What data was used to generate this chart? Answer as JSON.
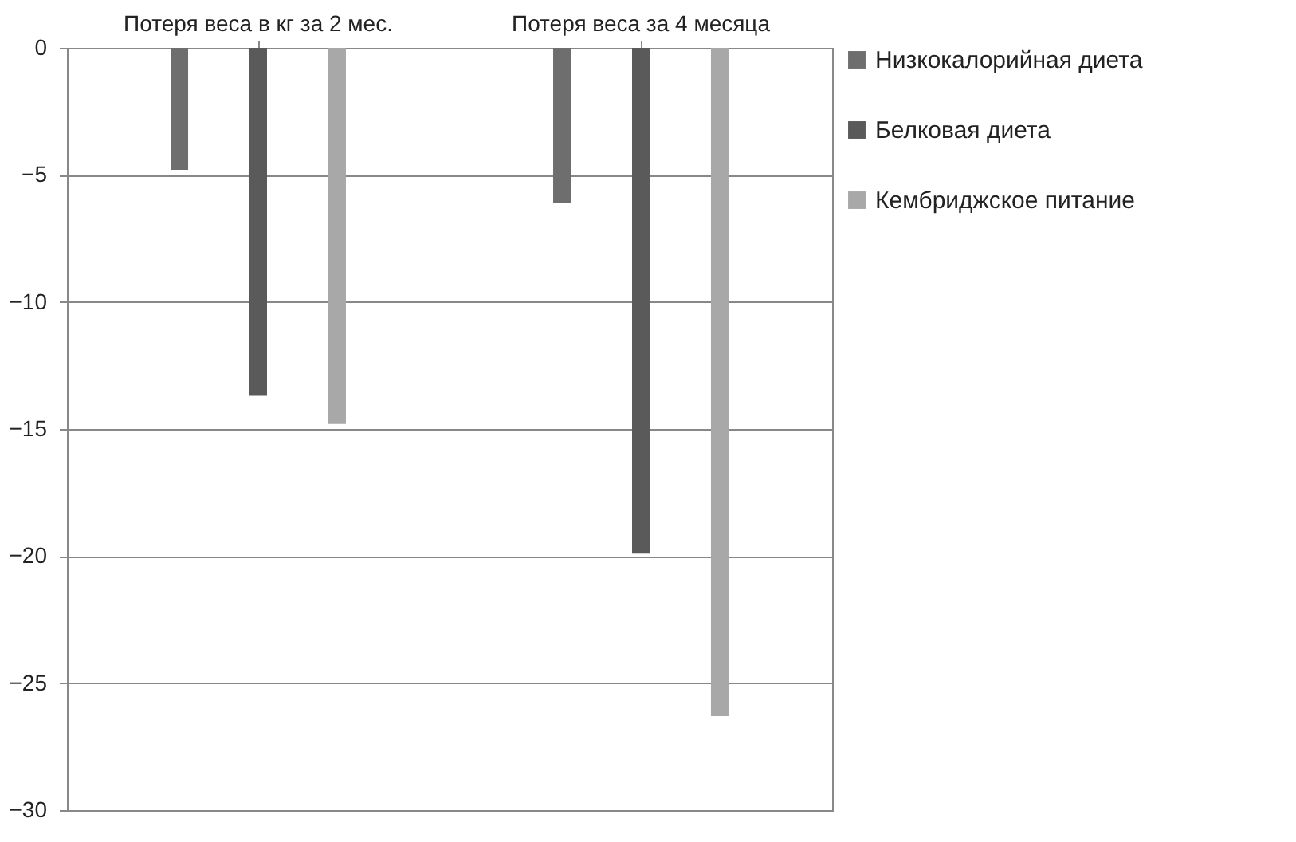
{
  "chart_data": {
    "type": "bar",
    "categories": [
      "Потеря веса в кг за 2 мес.",
      "Потеря веса за 4 месяца"
    ],
    "series": [
      {
        "name": "Низкокалорийная диета",
        "color": "#6e6e6e",
        "values": [
          -4.8,
          -6.1
        ]
      },
      {
        "name": "Белковая диета",
        "color": "#5a5a5a",
        "values": [
          -13.7,
          -19.9
        ]
      },
      {
        "name": "Кембриджское питание",
        "color": "#a8a8a8",
        "values": [
          -14.8,
          -26.3
        ]
      }
    ],
    "ylim": [
      -30,
      0
    ],
    "yticks": [
      -30,
      -25,
      -20,
      -15,
      -10,
      -5,
      0
    ],
    "grid": "y",
    "legend": "right"
  }
}
